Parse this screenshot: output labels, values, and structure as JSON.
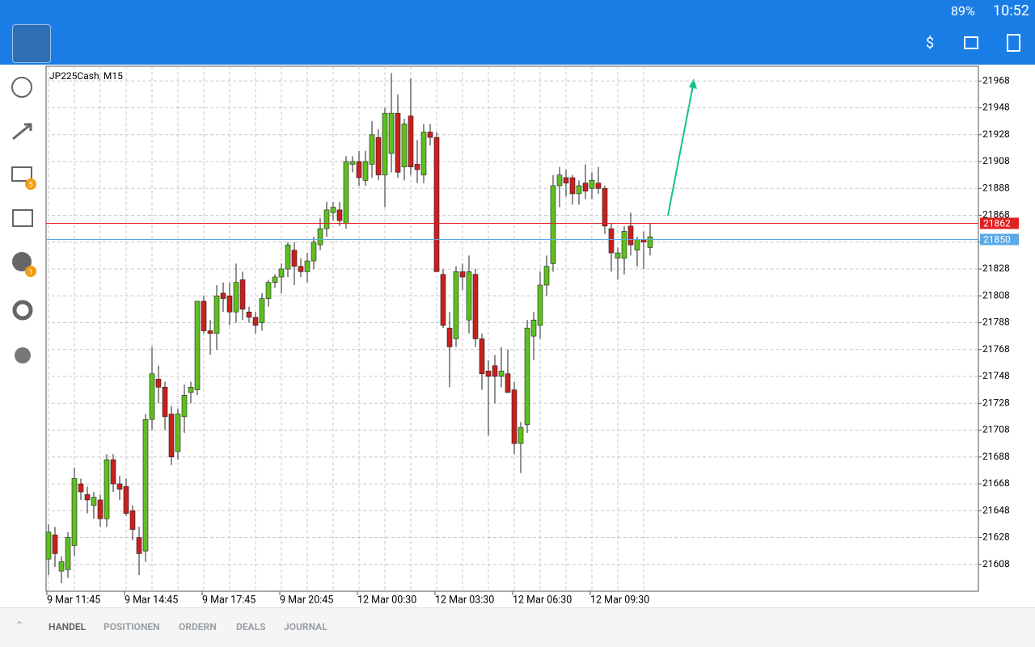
{
  "status_bar": {
    "battery": "89%",
    "time": "10:52"
  },
  "sidebar_badges": [
    "5",
    "1"
  ],
  "tabs": [
    "HANDEL",
    "POSITIONEN",
    "ORDERN",
    "DEALS",
    "JOURNAL"
  ],
  "chart_data": {
    "type": "candlestick",
    "title": "JP225Cash, M15",
    "categories": [
      "9 Mar 11:45",
      null,
      null,
      null,
      null,
      null,
      null,
      null,
      null,
      null,
      null,
      null,
      "9 Mar 14:45",
      null,
      null,
      null,
      null,
      null,
      null,
      null,
      null,
      null,
      null,
      null,
      "9 Mar 17:45",
      null,
      null,
      null,
      null,
      null,
      null,
      null,
      null,
      null,
      null,
      null,
      "9 Mar 20:45",
      null,
      null,
      null,
      null,
      null,
      null,
      null,
      null,
      null,
      null,
      null,
      "12 Mar 00:30",
      null,
      null,
      null,
      null,
      null,
      null,
      null,
      null,
      null,
      null,
      null,
      "12 Mar 03:30",
      null,
      null,
      null,
      null,
      null,
      null,
      null,
      null,
      null,
      null,
      null,
      "12 Mar 06:30",
      null,
      null,
      null,
      null,
      null,
      null,
      null,
      null,
      null,
      null,
      null,
      "12 Mar 09:30",
      null,
      null,
      null,
      null,
      null,
      null,
      null,
      null,
      null
    ],
    "open": [
      21612,
      21630,
      21603,
      21604,
      21622,
      21668,
      21660,
      21652,
      21656,
      21642,
      21686,
      21668,
      21666,
      21648,
      21628,
      21618,
      21716,
      21746,
      21740,
      21720,
      21692,
      21718,
      21736,
      21738,
      21804,
      21782,
      21780,
      21810,
      21808,
      21796,
      21820,
      21796,
      21792,
      21788,
      21806,
      21818,
      21822,
      21828,
      21842,
      21830,
      21826,
      21834,
      21846,
      21858,
      21870,
      21872,
      21862,
      21906,
      21908,
      21894,
      21906,
      21926,
      21898,
      21914,
      21944,
      21904,
      21942,
      21906,
      21898,
      21930,
      21926,
      21824,
      21784,
      21776,
      21826,
      21790,
      21824,
      21776,
      21752,
      21756,
      21748,
      21750,
      21738,
      21698,
      21712,
      21778,
      21786,
      21816,
      21832,
      21890,
      21896,
      21896,
      21884,
      21892,
      21888,
      21892,
      21888,
      21858,
      21836,
      21836,
      21860,
      21842,
      21850,
      21844
    ],
    "high": [
      21638,
      21636,
      21614,
      21632,
      21680,
      21672,
      21666,
      21662,
      21660,
      21690,
      21690,
      21674,
      21672,
      21652,
      21636,
      21720,
      21770,
      21756,
      21744,
      21726,
      21724,
      21742,
      21744,
      21804,
      21808,
      21790,
      21816,
      21818,
      21818,
      21832,
      21826,
      21800,
      21796,
      21810,
      21820,
      21824,
      21832,
      21848,
      21848,
      21836,
      21840,
      21852,
      21866,
      21878,
      21878,
      21878,
      21912,
      21912,
      21916,
      21916,
      21938,
      21932,
      21948,
      21974,
      21958,
      21940,
      21970,
      21924,
      21936,
      21936,
      21930,
      21828,
      21796,
      21830,
      21832,
      21838,
      21828,
      21780,
      21760,
      21764,
      21770,
      21768,
      21744,
      21714,
      21790,
      21796,
      21826,
      21838,
      21898,
      21904,
      21902,
      21898,
      21894,
      21906,
      21900,
      21904,
      21890,
      21862,
      21844,
      21860,
      21870,
      21852,
      21856,
      21862
    ],
    "low": [
      21600,
      21606,
      21594,
      21598,
      21614,
      21656,
      21646,
      21642,
      21636,
      21636,
      21662,
      21656,
      21644,
      21626,
      21600,
      21610,
      21708,
      21728,
      21708,
      21682,
      21686,
      21706,
      21728,
      21734,
      21780,
      21764,
      21768,
      21796,
      21786,
      21788,
      21790,
      21788,
      21780,
      21782,
      21800,
      21814,
      21810,
      21822,
      21816,
      21822,
      21818,
      21828,
      21842,
      21852,
      21864,
      21860,
      21858,
      21900,
      21890,
      21890,
      21896,
      21894,
      21874,
      21900,
      21896,
      21894,
      21898,
      21892,
      21892,
      21920,
      21826,
      21784,
      21740,
      21770,
      21812,
      21780,
      21770,
      21738,
      21704,
      21728,
      21740,
      21736,
      21690,
      21676,
      21706,
      21760,
      21776,
      21808,
      21826,
      21874,
      21882,
      21876,
      21876,
      21880,
      21880,
      21884,
      21854,
      21826,
      21820,
      21824,
      21838,
      21830,
      21828,
      21838
    ],
    "close": [
      21632,
      21616,
      21610,
      21628,
      21672,
      21662,
      21656,
      21658,
      21642,
      21686,
      21668,
      21664,
      21646,
      21634,
      21616,
      21716,
      21750,
      21740,
      21718,
      21688,
      21720,
      21734,
      21740,
      21804,
      21782,
      21780,
      21808,
      21806,
      21796,
      21818,
      21798,
      21792,
      21786,
      21806,
      21818,
      21822,
      21828,
      21846,
      21830,
      21826,
      21834,
      21848,
      21858,
      21872,
      21874,
      21864,
      21908,
      21908,
      21896,
      21908,
      21928,
      21898,
      21944,
      21944,
      21900,
      21936,
      21904,
      21902,
      21930,
      21926,
      21826,
      21786,
      21770,
      21826,
      21822,
      21826,
      21776,
      21750,
      21748,
      21748,
      21752,
      21736,
      21698,
      21710,
      21784,
      21790,
      21816,
      21830,
      21890,
      21898,
      21892,
      21884,
      21890,
      21886,
      21894,
      21888,
      21860,
      21840,
      21840,
      21856,
      21846,
      21850,
      21848,
      21852
    ],
    "up_color": "#5fbf1e",
    "down_color": "#c8201e",
    "price_lines": [
      {
        "value": 21862,
        "color": "#e02020"
      },
      {
        "value": 21850,
        "color": "#5aa8e6"
      }
    ],
    "ylim": [
      21588,
      21979
    ],
    "yticks": [
      21608,
      21628,
      21648,
      21668,
      21688,
      21708,
      21728,
      21748,
      21768,
      21788,
      21808,
      21828,
      21848,
      21868,
      21888,
      21908,
      21928,
      21948,
      21968
    ],
    "grid": true
  }
}
